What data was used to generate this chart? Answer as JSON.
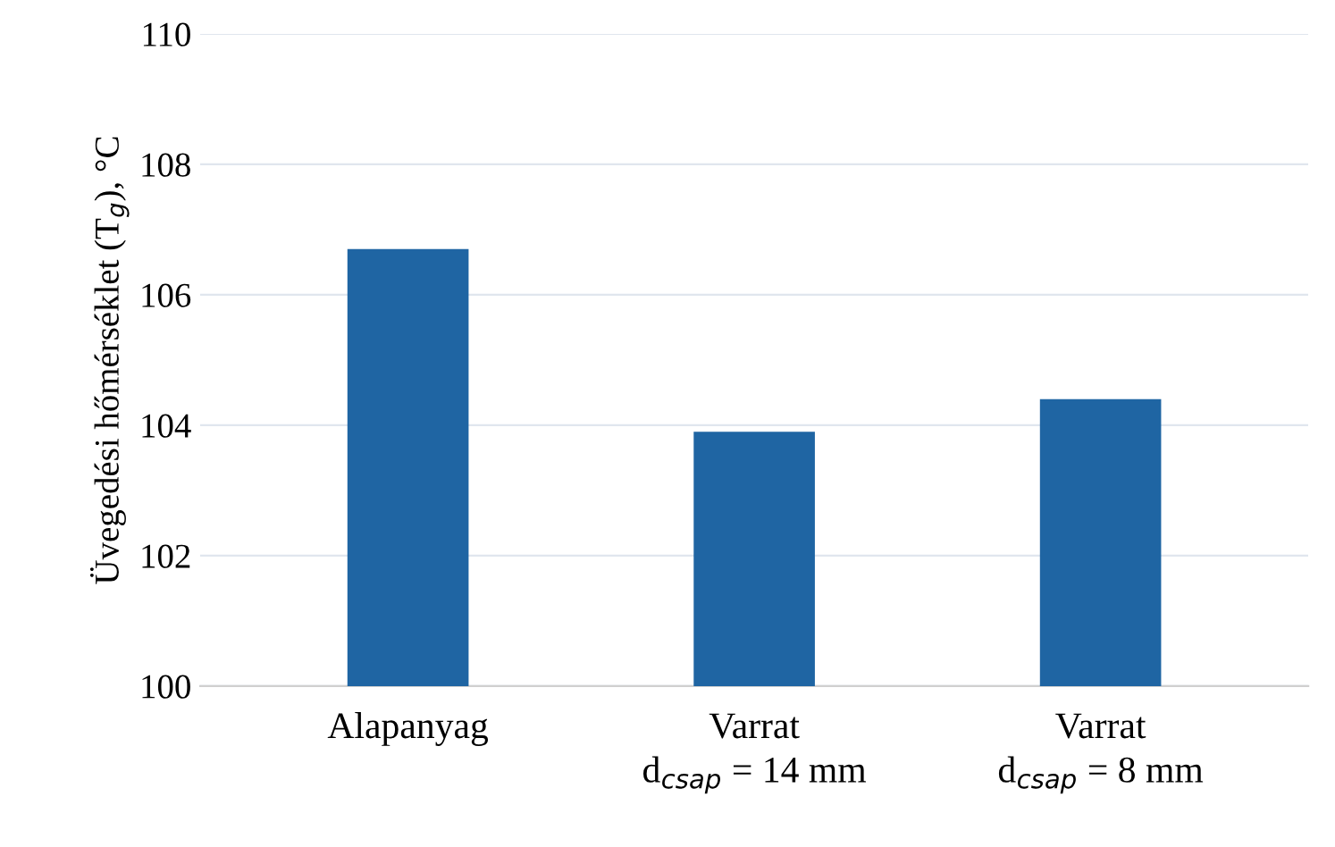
{
  "chart_data": {
    "type": "bar",
    "ylabel": "Üvegedési hőmérséklet (T$_{g}$), °C",
    "categories": [
      "Alapanyag",
      "Varrat\nd$_{csap}$ = 14 mm",
      "Varrat\nd$_{csap}$ = 8 mm"
    ],
    "values": [
      106.7,
      103.9,
      104.4
    ],
    "color": "#1f65a3",
    "ylim": [
      100,
      110
    ],
    "yticks": [
      100,
      102,
      104,
      106,
      108,
      110
    ],
    "grid": "y"
  }
}
